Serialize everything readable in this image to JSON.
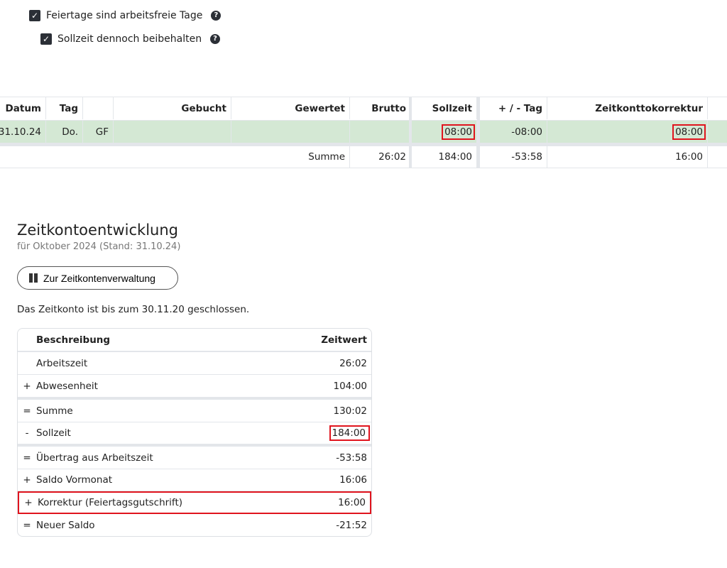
{
  "options": [
    {
      "label": "Feiertage sind arbeitsfreie Tage",
      "checked": true
    },
    {
      "label": "Sollzeit dennoch beibehalten",
      "checked": true
    }
  ],
  "table": {
    "headers": [
      "Datum",
      "Tag",
      "",
      "Gebucht",
      "Gewertet",
      "Brutto",
      "Sollzeit",
      "+ / - Tag",
      "Zeitkonttokorrektur"
    ],
    "row": [
      "31.10.24",
      "Do.",
      "GF",
      "",
      "",
      "",
      "08:00",
      "-08:00",
      "08:00"
    ],
    "sum": {
      "label": "Summe",
      "brutto": "26:02",
      "sollzeit": "184:00",
      "tag": "-53:58",
      "korrektur": "16:00"
    }
  },
  "zeitkonto": {
    "title": "Zeitkontoentwicklung",
    "subtitle": "für Oktober 2024 (Stand: 31.10.24)",
    "button": "Zur Zeitkontenverwaltung",
    "note": "Das Zeitkonto ist bis zum 30.11.20 geschlossen.",
    "headers": [
      "Beschreibung",
      "Zeitwert"
    ],
    "rows": [
      {
        "op": "",
        "desc": "Arbeitszeit",
        "value": "26:02"
      },
      {
        "op": "+",
        "desc": "Abwesenheit",
        "value": "104:00"
      },
      {
        "op": "=",
        "desc": "Summe",
        "value": "130:02"
      },
      {
        "op": "-",
        "desc": "Sollzeit",
        "value": "184:00"
      },
      {
        "op": "=",
        "desc": "Übertrag aus Arbeitszeit",
        "value": "-53:58"
      },
      {
        "op": "+",
        "desc": "Saldo Vormonat",
        "value": "16:06"
      },
      {
        "op": "+",
        "desc": "Korrektur (Feiertagsgutschrift)",
        "value": "16:00"
      },
      {
        "op": "=",
        "desc": "Neuer Saldo",
        "value": "-21:52"
      }
    ]
  },
  "colors": {
    "highlight": "#e0141e",
    "row_green": "#d4e8d4"
  }
}
